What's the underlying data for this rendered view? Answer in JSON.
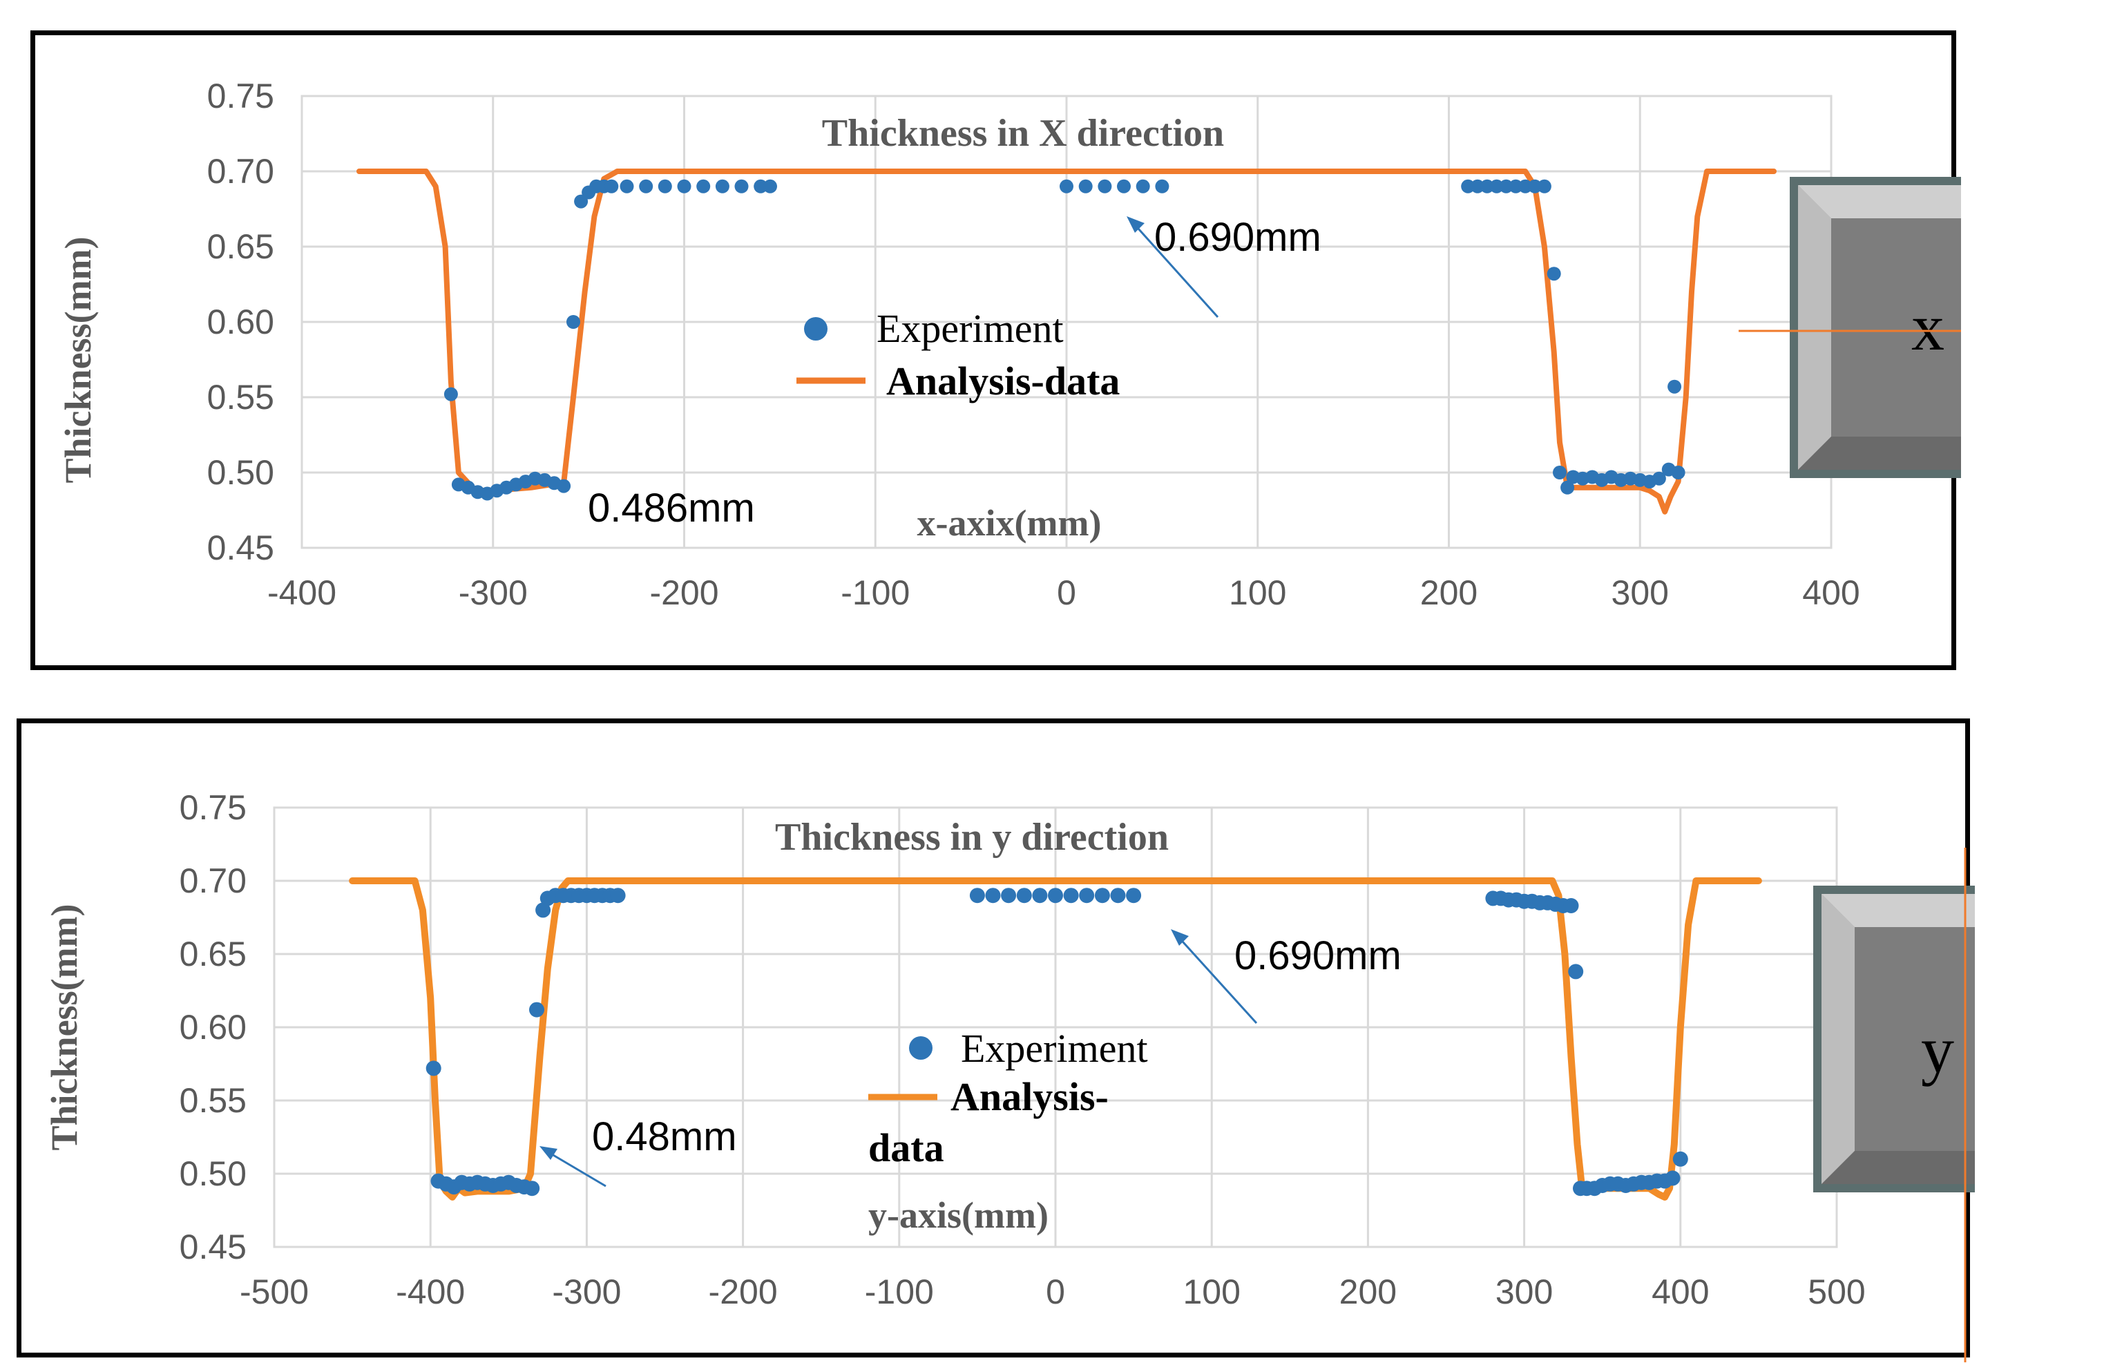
{
  "colors": {
    "experiment": "#2e75b6",
    "analysis": "#f07b2c",
    "analysis_y": "#f28c28",
    "grid": "#d9d9d9",
    "text": "#595959",
    "arrow": "#2e75b6"
  },
  "chart_data": [
    {
      "type": "line",
      "title": "Thickness in X direction",
      "xlabel": "x-axix(mm)",
      "ylabel": "Thickness(mm)",
      "xlim": [
        -400,
        400
      ],
      "ylim": [
        0.45,
        0.75
      ],
      "xticks": [
        "-400",
        "-300",
        "-200",
        "-100",
        "0",
        "100",
        "200",
        "300",
        "400"
      ],
      "yticks": [
        "0.45",
        "0.50",
        "0.55",
        "0.60",
        "0.65",
        "0.70",
        "0.75"
      ],
      "grid": true,
      "legend": [
        "Experiment",
        "Analysis-data"
      ],
      "annotations": [
        {
          "text": "0.690mm",
          "x": 33,
          "y": 0.683
        },
        {
          "text": "0.486mm",
          "x": -260,
          "y": 0.486
        }
      ],
      "inset_letter": "x",
      "series": [
        {
          "name": "Analysis-data",
          "kind": "line",
          "x": [
            -370,
            -335,
            -330,
            -325,
            -322,
            -318,
            -310,
            -300,
            -290,
            -280,
            -270,
            -263,
            -258,
            -252,
            -247,
            -242,
            -235,
            240,
            245,
            250,
            255,
            258,
            262,
            270,
            280,
            290,
            300,
            305,
            310,
            313,
            316,
            320,
            324,
            327,
            330,
            335,
            370
          ],
          "y": [
            0.7,
            0.7,
            0.69,
            0.65,
            0.56,
            0.5,
            0.489,
            0.487,
            0.489,
            0.49,
            0.492,
            0.493,
            0.55,
            0.62,
            0.67,
            0.695,
            0.7,
            0.7,
            0.69,
            0.65,
            0.58,
            0.52,
            0.49,
            0.49,
            0.49,
            0.49,
            0.49,
            0.488,
            0.484,
            0.474,
            0.484,
            0.494,
            0.55,
            0.62,
            0.67,
            0.7,
            0.7
          ]
        },
        {
          "name": "Experiment",
          "kind": "scatter",
          "x": [
            -322,
            -318,
            -313,
            -308,
            -303,
            -298,
            -293,
            -288,
            -283,
            -278,
            -273,
            -268,
            -263,
            -258,
            -254,
            -250,
            -246,
            -242,
            -238,
            -230,
            -220,
            -210,
            -200,
            -190,
            -180,
            -170,
            -160,
            -155,
            0,
            10,
            20,
            30,
            40,
            50,
            210,
            215,
            220,
            225,
            230,
            235,
            240,
            245,
            250,
            255,
            258,
            262,
            265,
            270,
            275,
            280,
            285,
            290,
            295,
            300,
            305,
            310,
            315,
            318,
            320
          ],
          "y": [
            0.552,
            0.492,
            0.49,
            0.487,
            0.486,
            0.488,
            0.49,
            0.492,
            0.494,
            0.496,
            0.495,
            0.493,
            0.491,
            0.6,
            0.68,
            0.686,
            0.69,
            0.69,
            0.69,
            0.69,
            0.69,
            0.69,
            0.69,
            0.69,
            0.69,
            0.69,
            0.69,
            0.69,
            0.69,
            0.69,
            0.69,
            0.69,
            0.69,
            0.69,
            0.69,
            0.69,
            0.69,
            0.69,
            0.69,
            0.69,
            0.69,
            0.69,
            0.69,
            0.632,
            0.5,
            0.49,
            0.497,
            0.496,
            0.497,
            0.495,
            0.497,
            0.495,
            0.496,
            0.495,
            0.494,
            0.496,
            0.502,
            0.557,
            0.5
          ]
        }
      ]
    },
    {
      "type": "line",
      "title": "Thickness in y direction",
      "xlabel": "y-axis(mm)",
      "ylabel": "Thickness(mm)",
      "xlim": [
        -500,
        500
      ],
      "ylim": [
        0.45,
        0.75
      ],
      "xticks": [
        "-500",
        "-400",
        "-300",
        "-200",
        "-100",
        "0",
        "100",
        "200",
        "300",
        "400",
        "500"
      ],
      "yticks": [
        "0.45",
        "0.50",
        "0.55",
        "0.60",
        "0.65",
        "0.70",
        "0.75"
      ],
      "grid": true,
      "legend": [
        "Experiment",
        "Analysis-",
        "data"
      ],
      "annotations": [
        {
          "text": "0.690mm",
          "x": 77,
          "y": 0.682
        },
        {
          "text": "0.48mm",
          "x": -336,
          "y": 0.491
        }
      ],
      "inset_letter": "y",
      "series": [
        {
          "name": "Analysis-data",
          "kind": "line",
          "x": [
            -450,
            -410,
            -405,
            -400,
            -397,
            -394,
            -390,
            -386,
            -382,
            -378,
            -370,
            -360,
            -350,
            -340,
            -336,
            -330,
            -325,
            -320,
            -316,
            -312,
            318,
            322,
            326,
            330,
            334,
            337,
            340,
            350,
            360,
            370,
            380,
            386,
            390,
            393,
            396,
            400,
            405,
            410,
            450
          ],
          "y": [
            0.7,
            0.7,
            0.68,
            0.62,
            0.55,
            0.495,
            0.488,
            0.484,
            0.49,
            0.487,
            0.488,
            0.488,
            0.488,
            0.49,
            0.5,
            0.58,
            0.64,
            0.68,
            0.695,
            0.7,
            0.7,
            0.69,
            0.65,
            0.58,
            0.52,
            0.49,
            0.49,
            0.49,
            0.49,
            0.49,
            0.49,
            0.486,
            0.484,
            0.49,
            0.52,
            0.6,
            0.67,
            0.7,
            0.7
          ]
        },
        {
          "name": "Experiment",
          "kind": "scatter",
          "x": [
            -398,
            -395,
            -390,
            -385,
            -380,
            -375,
            -370,
            -365,
            -360,
            -355,
            -350,
            -345,
            -340,
            -335,
            -332,
            -328,
            -325,
            -320,
            -315,
            -310,
            -305,
            -300,
            -295,
            -290,
            -285,
            -280,
            -50,
            -40,
            -30,
            -20,
            -10,
            0,
            10,
            20,
            30,
            40,
            50,
            280,
            285,
            290,
            295,
            300,
            305,
            310,
            315,
            320,
            325,
            330,
            333,
            336,
            340,
            345,
            350,
            355,
            360,
            365,
            370,
            375,
            380,
            385,
            390,
            395,
            400
          ],
          "y": [
            0.572,
            0.495,
            0.493,
            0.491,
            0.494,
            0.493,
            0.494,
            0.493,
            0.492,
            0.493,
            0.494,
            0.492,
            0.491,
            0.49,
            0.612,
            0.68,
            0.688,
            0.69,
            0.69,
            0.69,
            0.69,
            0.69,
            0.69,
            0.69,
            0.69,
            0.69,
            0.69,
            0.69,
            0.69,
            0.69,
            0.69,
            0.69,
            0.69,
            0.69,
            0.69,
            0.69,
            0.69,
            0.688,
            0.688,
            0.687,
            0.687,
            0.686,
            0.686,
            0.685,
            0.685,
            0.684,
            0.683,
            0.683,
            0.638,
            0.49,
            0.49,
            0.49,
            0.492,
            0.493,
            0.493,
            0.492,
            0.493,
            0.494,
            0.494,
            0.495,
            0.495,
            0.497,
            0.51
          ]
        }
      ]
    }
  ]
}
